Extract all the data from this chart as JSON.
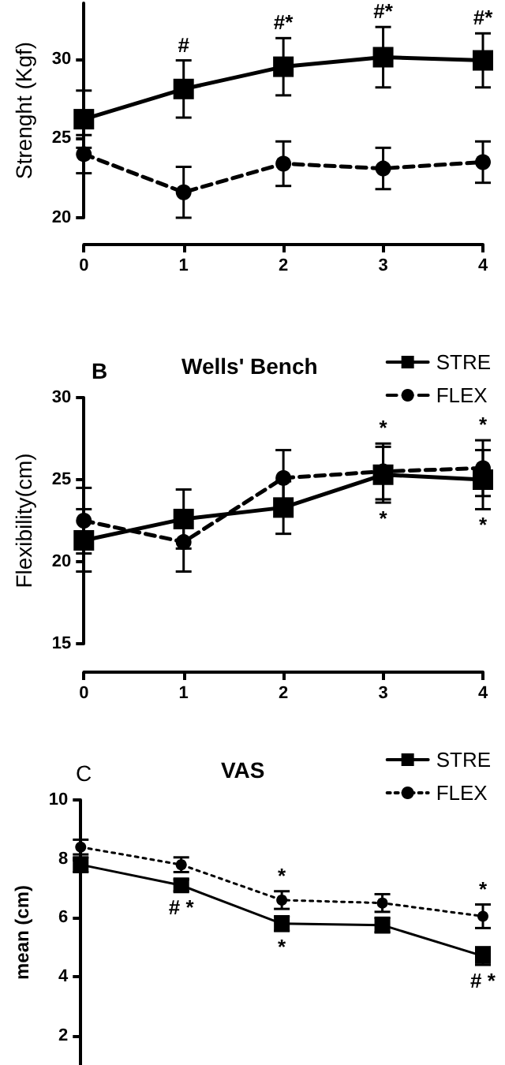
{
  "chart_data": [
    {
      "type": "line",
      "ylabel": "Strenght (Kgf)",
      "x": [
        0,
        1,
        2,
        3,
        4
      ],
      "xlim": [
        0,
        4
      ],
      "xticks": [
        0,
        1,
        2,
        3,
        4
      ],
      "ylim": [
        20,
        33.5
      ],
      "yticks": [
        20,
        25,
        30
      ],
      "grid": false,
      "legend": false,
      "series": [
        {
          "color": "#000000",
          "marker": "square",
          "line_style": "solid",
          "values": [
            26.2,
            28.1,
            29.5,
            30.1,
            29.9
          ],
          "errors": [
            1.8,
            1.8,
            1.8,
            1.9,
            1.7
          ]
        },
        {
          "color": "#000000",
          "marker": "circle",
          "line_style": "dashed",
          "values": [
            24.0,
            21.6,
            23.4,
            23.1,
            23.5
          ],
          "errors": [
            1.2,
            1.6,
            1.4,
            1.3,
            1.3
          ]
        }
      ],
      "annotations": [
        {
          "text": "#",
          "x": 1,
          "y": 28.1
        },
        {
          "text": "#*",
          "x": 2,
          "y": 29.5
        },
        {
          "text": "#*",
          "x": 3,
          "y": 30.1
        },
        {
          "text": "#*",
          "x": 4,
          "y": 29.9
        }
      ]
    },
    {
      "type": "line",
      "title": "Wells' Bench",
      "ylabel": "Flexibility(cm)",
      "x": [
        0,
        1,
        2,
        3,
        4
      ],
      "xlim": [
        0,
        4
      ],
      "xticks": [
        0,
        1,
        2,
        3,
        4
      ],
      "ylim": [
        15,
        30
      ],
      "yticks": [
        15,
        20,
        25,
        30
      ],
      "grid": false,
      "legend": "top right",
      "series": [
        {
          "name": "STRE",
          "color": "#000000",
          "marker": "square",
          "line_style": "solid",
          "values": [
            21.3,
            22.6,
            23.3,
            25.3,
            25.0
          ],
          "errors": [
            1.9,
            1.8,
            1.6,
            1.7,
            1.8
          ]
        },
        {
          "name": "FLEX",
          "color": "#000000",
          "marker": "circle",
          "line_style": "dashed",
          "values": [
            22.5,
            21.2,
            25.1,
            25.5,
            25.7
          ],
          "errors": [
            2.0,
            1.8,
            1.7,
            1.7,
            1.7
          ]
        }
      ],
      "annotations": [
        "B",
        {
          "text": "*",
          "x": 3,
          "y": 25.5
        },
        {
          "text": "*",
          "x": 3,
          "y": 25.3
        },
        {
          "text": "*",
          "x": 4,
          "y": 25.7
        },
        {
          "text": "*",
          "x": 4,
          "y": 25.0
        }
      ]
    },
    {
      "type": "line",
      "title": "VAS",
      "ylabel": "mean (cm)",
      "categories": [
        null,
        null,
        null,
        null,
        null
      ],
      "tick_labels": "y",
      "ylim": [
        1,
        10
      ],
      "yticks": [
        2,
        4,
        6,
        8,
        10
      ],
      "grid": false,
      "legend": "top right",
      "series": [
        {
          "name": "STRE",
          "color": "#000000",
          "marker": "square",
          "line_style": "solid",
          "values": [
            7.8,
            7.1,
            5.8,
            5.75,
            4.7
          ],
          "errors": [
            0.25,
            0.2,
            0.25,
            0.25,
            0.3
          ]
        },
        {
          "name": "FLEX",
          "color": "#000000",
          "marker": "circle",
          "line_style": "dotted",
          "values": [
            8.4,
            7.8,
            6.6,
            6.5,
            6.05
          ],
          "errors": [
            0.25,
            0.25,
            0.3,
            0.3,
            0.4
          ]
        }
      ],
      "annotations": [
        "C",
        {
          "text": "# *",
          "y": 7.1
        },
        {
          "text": "*",
          "y": 6.6
        },
        {
          "text": "*",
          "y": 5.8
        },
        {
          "text": "*",
          "y": 6.05
        },
        {
          "text": "# *",
          "y": 4.7
        }
      ]
    }
  ]
}
